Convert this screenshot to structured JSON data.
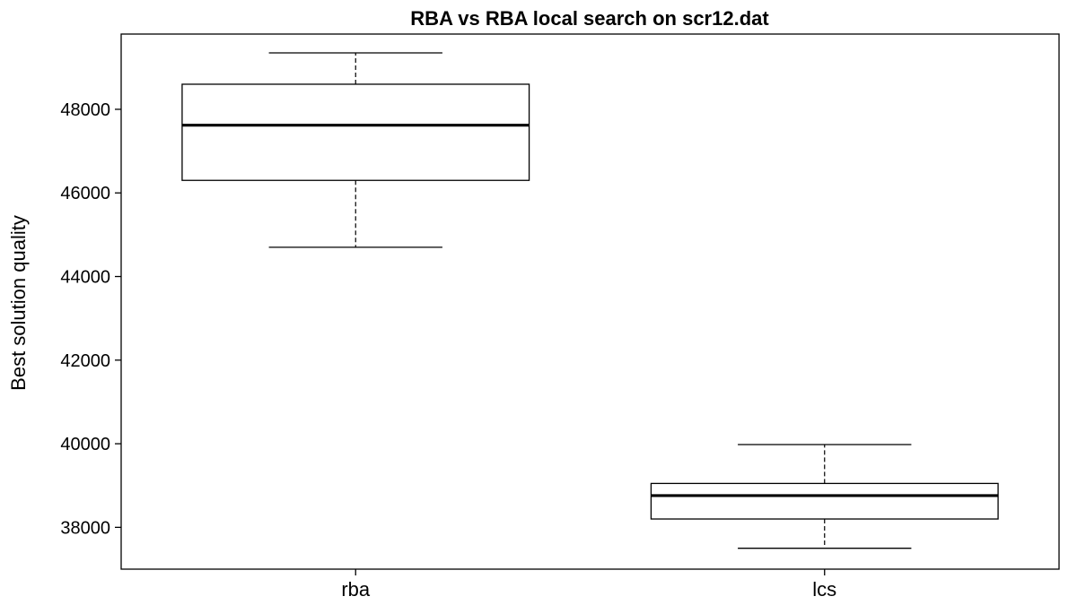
{
  "chart_data": {
    "type": "boxplot",
    "title": "RBA vs RBA local search on scr12.dat",
    "xlabel": "",
    "ylabel": "Best solution quality",
    "ylim": [
      37000,
      49800
    ],
    "yticks": [
      38000,
      40000,
      42000,
      44000,
      46000,
      48000
    ],
    "ytick_labels": [
      "38000",
      "40000",
      "42000",
      "44000",
      "46000",
      "48000"
    ],
    "grid": false,
    "categories": [
      "rba",
      "lcs"
    ],
    "boxes": [
      {
        "category": "rba",
        "whisker_low": 44700,
        "q1": 46300,
        "median": 47620,
        "q3": 48600,
        "whisker_high": 49350
      },
      {
        "category": "lcs",
        "whisker_low": 37500,
        "q1": 38200,
        "median": 38760,
        "q3": 39050,
        "whisker_high": 39980
      }
    ],
    "colors": {
      "box_fill": "#ffffff",
      "stroke": "#000000",
      "background": "#ffffff"
    }
  }
}
